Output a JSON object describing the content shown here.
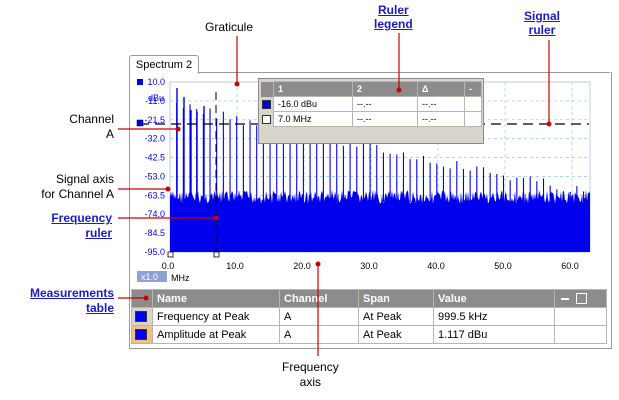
{
  "callouts": {
    "graticule": "Graticule",
    "ruler_legend_1": "Ruler",
    "ruler_legend_2": "legend",
    "signal_ruler_1": "Signal",
    "signal_ruler_2": "ruler",
    "channel_a_1": "Channel",
    "channel_a_2": "A",
    "signal_axis_1": "Signal axis",
    "signal_axis_2": "for Channel A",
    "frequency_ruler_1": "Frequency",
    "frequency_ruler_2": "ruler",
    "measurements_table_1": "Measurements",
    "measurements_table_2": "table",
    "frequency_axis_1": "Frequency",
    "frequency_axis_2": "axis"
  },
  "window": {
    "tab_label": "Spectrum 2"
  },
  "axes": {
    "y_unit": "dBu",
    "y_ticks": [
      "10.0",
      "-11.0",
      "-21.5",
      "-32.0",
      "-42.5",
      "-53.0",
      "-63.5",
      "-74.0",
      "-84.5",
      "-95.0"
    ],
    "x_ticks": [
      "0.0",
      "10.0",
      "20.0",
      "30.0",
      "40.0",
      "50.0",
      "60.0"
    ],
    "x_unit": "MHz",
    "zoom": "x1.0",
    "channel_color": "#0000ee"
  },
  "legend": {
    "headers": [
      "1",
      "2",
      "Δ",
      "-"
    ],
    "rows": [
      {
        "swatch": "#0000ee",
        "cells": [
          "-16.0 dBu",
          "--.--",
          "--.--"
        ]
      },
      {
        "swatch": "#ffffff",
        "cells": [
          "7.0 MHz",
          "--.--",
          "--.--"
        ]
      }
    ]
  },
  "measurements": {
    "headers": [
      "Name",
      "Channel",
      "Span",
      "Value"
    ],
    "rows": [
      {
        "color": "#0000ee",
        "name": "Frequency at Peak",
        "channel": "A",
        "span": "At Peak",
        "value": "999.5 kHz"
      },
      {
        "color": "#0000ee",
        "name": "Amplitude at Peak",
        "channel": "A",
        "span": "At Peak",
        "value": "1.117 dBu"
      }
    ]
  },
  "annotation_color": "#cc0000"
}
